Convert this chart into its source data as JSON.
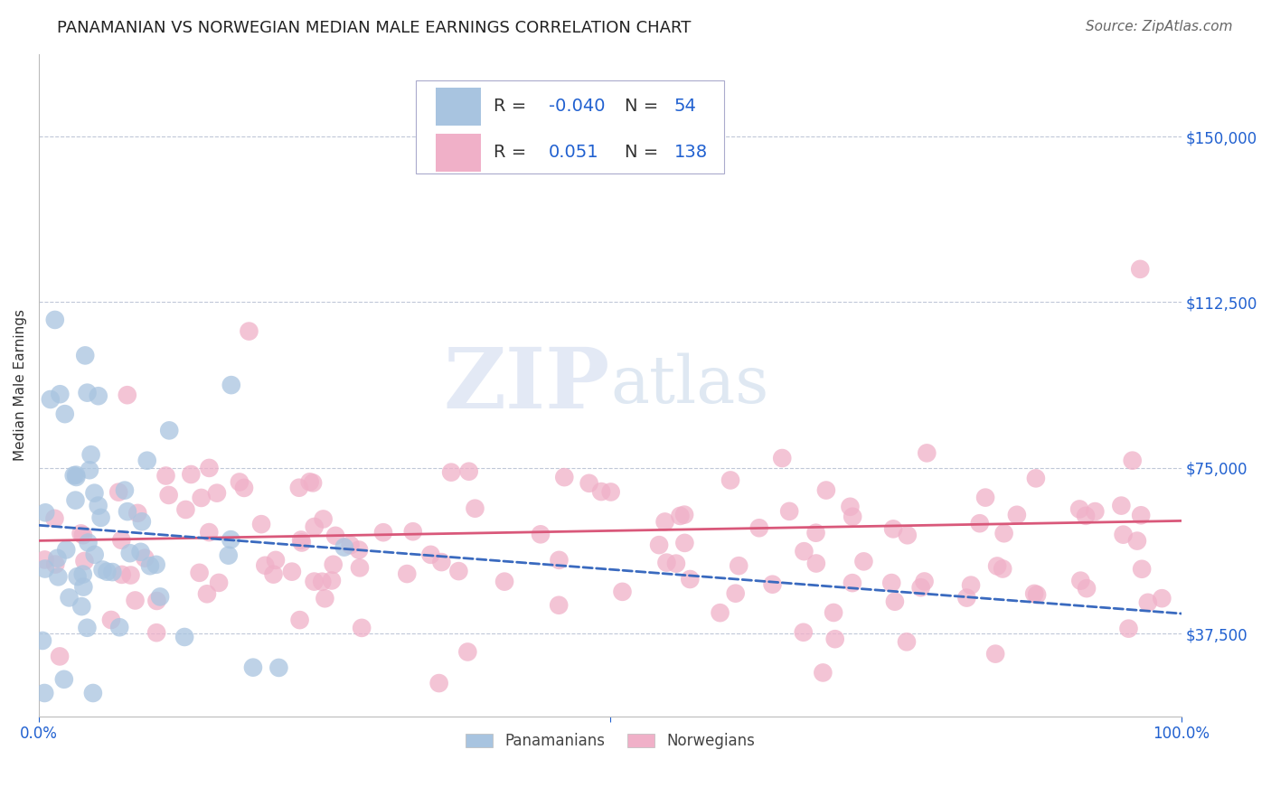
{
  "title": "PANAMANIAN VS NORWEGIAN MEDIAN MALE EARNINGS CORRELATION CHART",
  "source": "Source: ZipAtlas.com",
  "ylabel": "Median Male Earnings",
  "xmin": 0.0,
  "xmax": 1.0,
  "ymin": 18750,
  "ymax": 168750,
  "yticks": [
    37500,
    75000,
    112500,
    150000
  ],
  "ytick_labels": [
    "$37,500",
    "$75,000",
    "$112,500",
    "$150,000"
  ],
  "pan_color": "#a8c4e0",
  "nor_color": "#f0b0c8",
  "pan_R": -0.04,
  "pan_N": 54,
  "nor_R": 0.051,
  "nor_N": 138,
  "pan_line_color": "#3a6abf",
  "nor_line_color": "#d9587a",
  "watermark_text": "ZIPatlas",
  "background_color": "#ffffff",
  "grid_color": "#c0c8d8",
  "title_fontsize": 13,
  "axis_label_fontsize": 11,
  "tick_fontsize": 12,
  "legend_fontsize": 14,
  "source_fontsize": 11,
  "pan_line_y0": 62000,
  "pan_line_y1": 42000,
  "nor_line_y0": 58500,
  "nor_line_y1": 63000
}
